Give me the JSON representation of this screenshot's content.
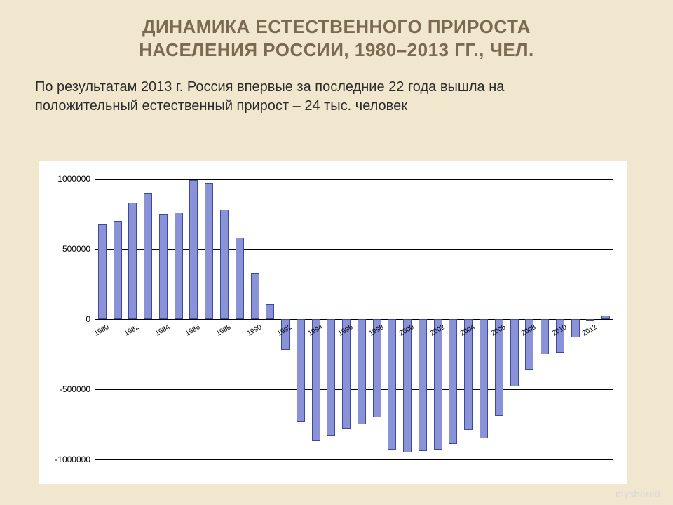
{
  "title_line1": "ДИНАМИКА ЕСТЕСТВЕННОГО ПРИРОСТА",
  "title_line2": "НАСЕЛЕНИЯ РОССИИ, 1980–2013 ГГ., ЧЕЛ.",
  "subtitle": "По результатам 2013 г. Россия впервые за последние 22 года вышла на положительный естественный прирост – 24 тыс. человек",
  "watermark": "myshared",
  "chart": {
    "type": "bar",
    "background_color": "#ffffff",
    "page_background": "#f1e6ce",
    "title_color": "#7a6a50",
    "bar_color": "#8a92d8",
    "bar_border_color": "#3e4a9e",
    "grid_color": "#000000",
    "ylim": [
      -1100000,
      1050000
    ],
    "yticks": [
      -1000000,
      -500000,
      0,
      500000,
      1000000
    ],
    "ytick_fontsize": 12,
    "xtick_fontsize": 10,
    "xtick_rotation": -30,
    "bar_width_ratio": 0.55,
    "years": [
      1980,
      1981,
      1982,
      1983,
      1984,
      1985,
      1986,
      1987,
      1988,
      1989,
      1990,
      1991,
      1992,
      1993,
      1994,
      1995,
      1996,
      1997,
      1998,
      1999,
      2000,
      2001,
      2002,
      2003,
      2004,
      2005,
      2006,
      2007,
      2008,
      2009,
      2010,
      2011,
      2012,
      2013
    ],
    "x_labels": [
      "1980",
      "1982",
      "1984",
      "1986",
      "1988",
      "1990",
      "1992",
      "1994",
      "1996",
      "1998",
      "2000",
      "2002",
      "2004",
      "2006",
      "2008",
      "2010",
      "2012"
    ],
    "x_label_years": [
      1980,
      1982,
      1984,
      1986,
      1988,
      1990,
      1992,
      1994,
      1996,
      1998,
      2000,
      2002,
      2004,
      2006,
      2008,
      2010,
      2012
    ],
    "values": [
      677000,
      700000,
      830000,
      900000,
      750000,
      760000,
      988000,
      968000,
      780000,
      580000,
      330000,
      105000,
      -220000,
      -730000,
      -870000,
      -830000,
      -780000,
      -750000,
      -700000,
      -930000,
      -950000,
      -940000,
      -930000,
      -890000,
      -790000,
      -850000,
      -690000,
      -480000,
      -360000,
      -250000,
      -240000,
      -130000,
      -2000,
      24000
    ]
  }
}
